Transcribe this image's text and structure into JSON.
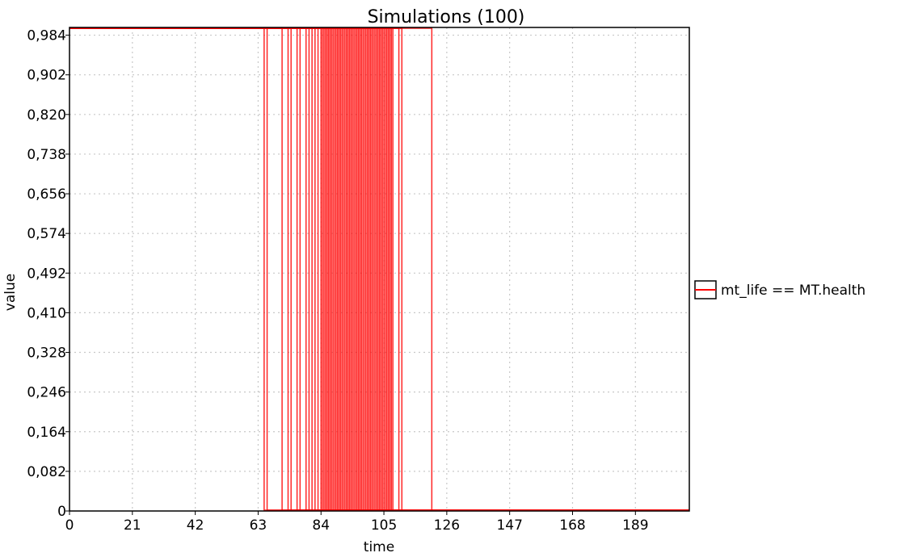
{
  "chart_data": {
    "type": "line",
    "title": "Simulations (100)",
    "xlabel": "time",
    "ylabel": "value",
    "xlim": [
      0,
      207
    ],
    "ylim": [
      0,
      1.0
    ],
    "x_ticks": [
      "0",
      "21",
      "42",
      "63",
      "84",
      "105",
      "126",
      "147",
      "168",
      "189"
    ],
    "x_tick_values": [
      0,
      21,
      42,
      63,
      84,
      105,
      126,
      147,
      168,
      189
    ],
    "y_ticks": [
      "0",
      "0,082",
      "0,164",
      "0,246",
      "0,328",
      "0,410",
      "0,492",
      "0,574",
      "0,656",
      "0,738",
      "0,820",
      "0,902",
      "0,984"
    ],
    "y_tick_values": [
      0,
      0.082,
      0.164,
      0.246,
      0.328,
      0.41,
      0.492,
      0.574,
      0.656,
      0.738,
      0.82,
      0.902,
      0.984
    ],
    "grid": true,
    "legend_position": "right",
    "series": [
      {
        "name": "mt_life == MT.health",
        "color": "#ff0000",
        "value_before_drop": 1,
        "value_after_drop": 0,
        "drop_times": [
          65,
          66,
          71,
          73,
          74,
          76,
          77,
          79,
          80,
          81,
          82,
          83,
          84,
          84.5,
          85,
          85.5,
          86,
          86.5,
          87,
          87.5,
          88,
          88.5,
          89,
          89.5,
          90,
          90.5,
          91,
          91.5,
          92,
          92.5,
          93,
          93.5,
          94,
          94.5,
          95,
          95.5,
          96,
          96.5,
          97,
          97.5,
          98,
          98.5,
          99,
          99.5,
          100,
          100.5,
          101,
          101.5,
          102,
          102.5,
          103,
          103.5,
          104,
          104.5,
          105,
          105.5,
          106,
          106.5,
          107,
          107.5,
          108,
          110,
          111,
          121
        ]
      }
    ]
  }
}
